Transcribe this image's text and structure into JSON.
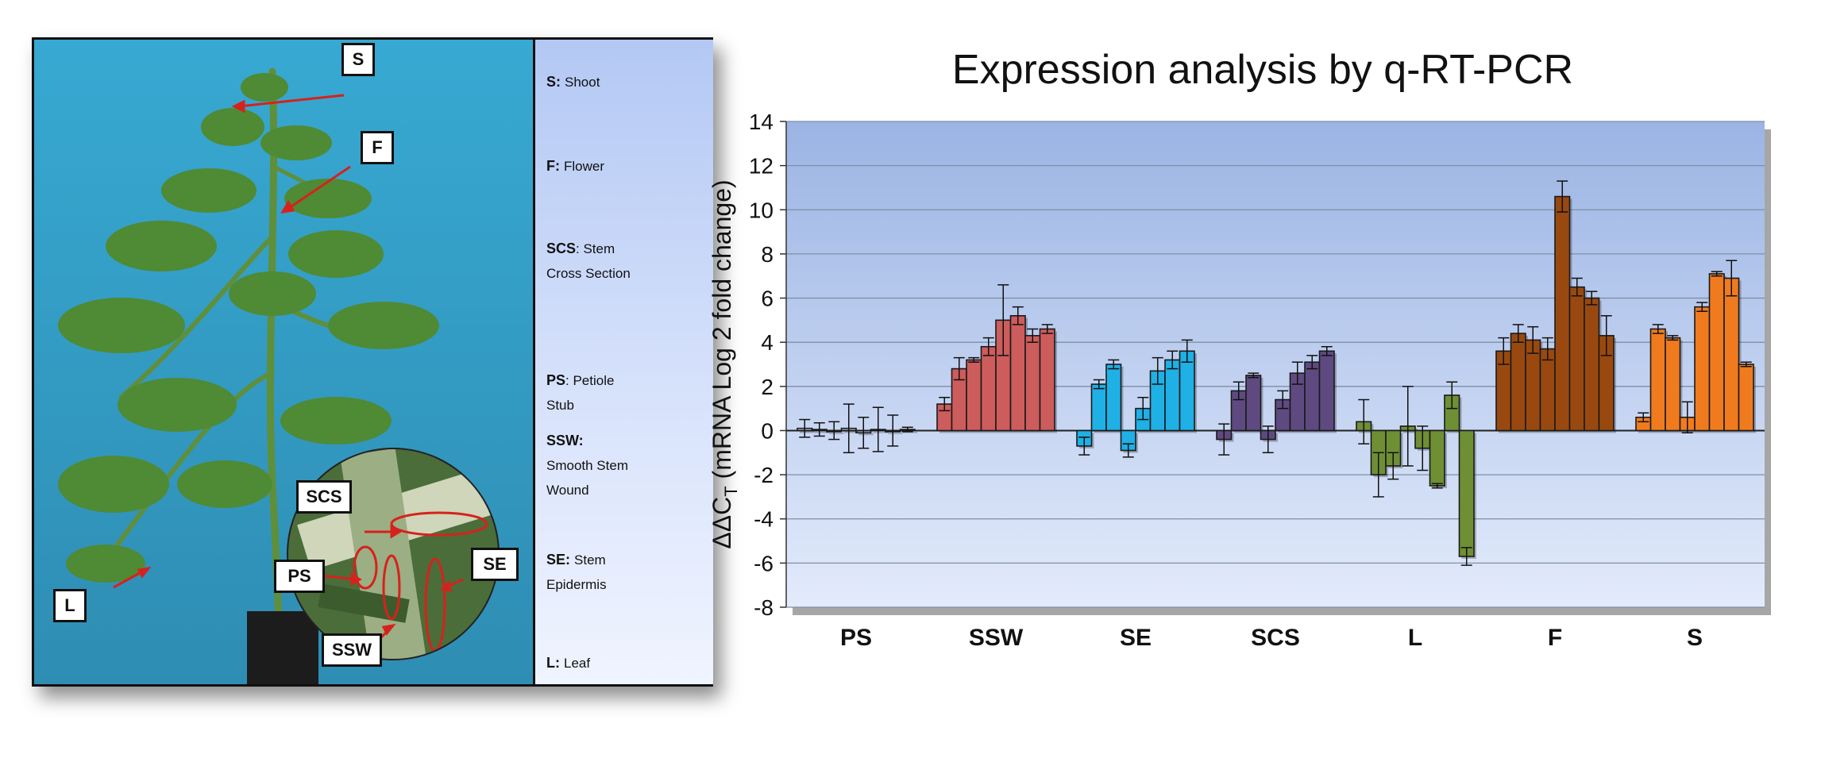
{
  "photo_labels": {
    "callouts": [
      "S",
      "F",
      "SCS",
      "PS",
      "SSW",
      "SE",
      "L"
    ]
  },
  "legend": [
    {
      "abbr": "S:",
      "desc": "Shoot"
    },
    {
      "abbr": "F:",
      "desc": "Flower"
    },
    {
      "abbr": "SCS",
      "desc": ": Stem Cross Section"
    },
    {
      "abbr": "PS",
      "desc": ": Petiole Stub"
    },
    {
      "abbr": "SSW:",
      "desc": "Smooth Stem Wound"
    },
    {
      "abbr": "SE:",
      "desc": "Stem Epidermis"
    },
    {
      "abbr": "L:",
      "desc": "Leaf"
    }
  ],
  "colors": {
    "PS": "#ffffff",
    "SSW": "#cd5c5c",
    "SE": "#1fb0e6",
    "SCS": "#5e4a80",
    "L": "#6f8f35",
    "F": "#99490f",
    "S": "#f07b1e"
  },
  "chart_data": {
    "type": "bar",
    "title": "Expression analysis by q-RT-PCR",
    "ylabel": "ΔΔC",
    "ylabel_sub": "T",
    "ylabel_rest": " (mRNA Log 2 fold change)",
    "ylim": [
      -8,
      14
    ],
    "yticks": [
      -8,
      -6,
      -4,
      -2,
      0,
      2,
      4,
      6,
      8,
      10,
      12,
      14
    ],
    "grid": true,
    "groups": [
      {
        "name": "PS",
        "values": [
          0.1,
          0.05,
          0.0,
          0.1,
          -0.1,
          0.05,
          0.0,
          0.05
        ],
        "errors": [
          0.4,
          0.3,
          0.4,
          1.1,
          0.7,
          1.0,
          0.7,
          0.1
        ]
      },
      {
        "name": "SSW",
        "values": [
          1.2,
          2.8,
          3.2,
          3.8,
          5.0,
          5.2,
          4.3,
          4.6
        ],
        "errors": [
          0.3,
          0.5,
          0.1,
          0.4,
          1.6,
          0.4,
          0.3,
          0.2
        ]
      },
      {
        "name": "SE",
        "values": [
          -0.7,
          2.1,
          3.0,
          -0.9,
          1.0,
          2.7,
          3.2,
          3.6
        ],
        "errors": [
          0.4,
          0.2,
          0.2,
          0.3,
          0.5,
          0.6,
          0.4,
          0.5
        ]
      },
      {
        "name": "SCS",
        "values": [
          -0.4,
          1.8,
          2.5,
          -0.4,
          1.4,
          2.6,
          3.1,
          3.6
        ],
        "errors": [
          0.7,
          0.4,
          0.1,
          0.6,
          0.4,
          0.5,
          0.3,
          0.2
        ]
      },
      {
        "name": "L",
        "values": [
          0.4,
          -2.0,
          -1.6,
          0.2,
          -0.8,
          -2.5,
          1.6,
          -5.7
        ],
        "errors": [
          1.0,
          1.0,
          0.6,
          1.8,
          1.0,
          0.1,
          0.6,
          0.4
        ]
      },
      {
        "name": "F",
        "values": [
          3.6,
          4.4,
          4.1,
          3.7,
          10.6,
          6.5,
          6.0,
          4.3
        ],
        "errors": [
          0.6,
          0.4,
          0.6,
          0.5,
          0.7,
          0.4,
          0.3,
          0.9
        ]
      },
      {
        "name": "S",
        "values": [
          0.6,
          4.6,
          4.2,
          0.6,
          5.6,
          7.1,
          6.9,
          3.0
        ],
        "errors": [
          0.2,
          0.2,
          0.1,
          0.7,
          0.2,
          0.1,
          0.8,
          0.1
        ]
      }
    ]
  }
}
